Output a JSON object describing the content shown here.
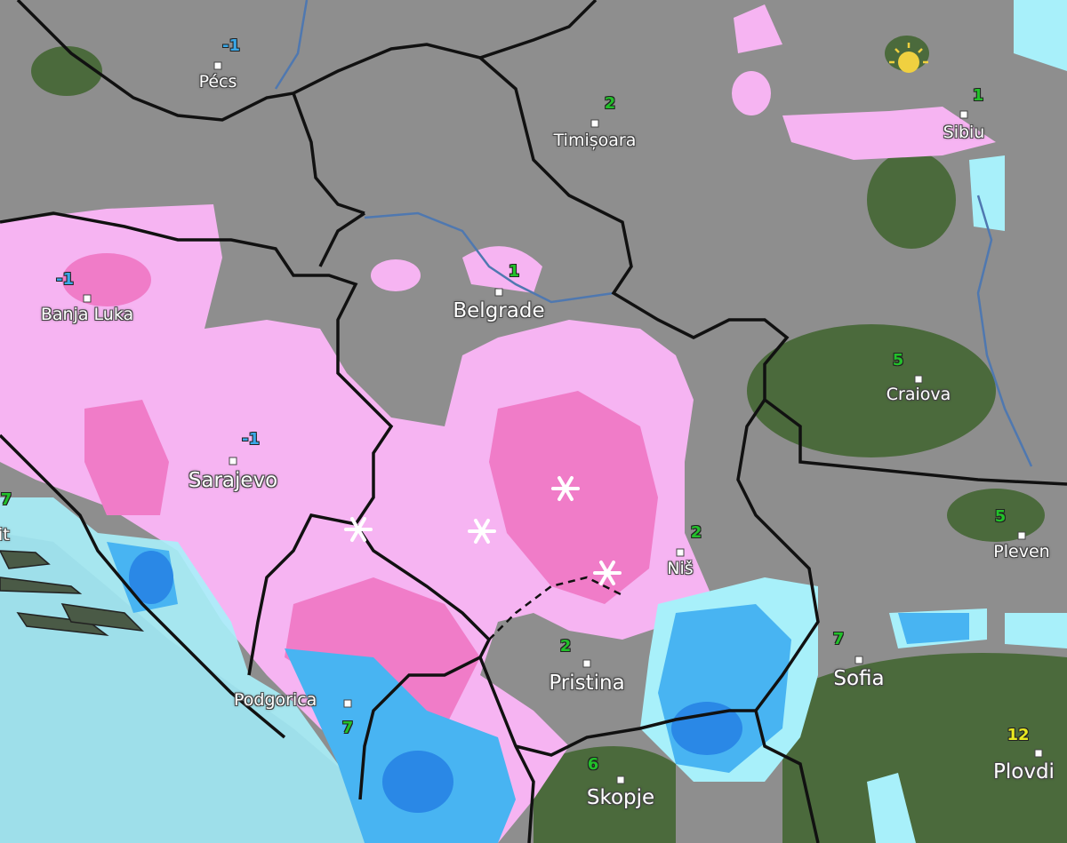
{
  "colors": {
    "background": "#8e8e8e",
    "snow_light": "#f6b4f2",
    "snow_heavy": "#f07cc8",
    "rain_light": "#a8f0fa",
    "rain_medium": "#48b4f2",
    "rain_heavy": "#2a88e6",
    "temp_cold": "#3aa8e8",
    "temp_mild": "#22c02a",
    "temp_warm": "#e8e820",
    "border": "#111111",
    "river": "#4f78b0"
  },
  "cities": [
    {
      "name": "Pécs",
      "temp": "-1"
    },
    {
      "name": "Timișoara",
      "temp": "2"
    },
    {
      "name": "Sibiu",
      "temp": "1"
    },
    {
      "name": "Banja Luka",
      "temp": "-1"
    },
    {
      "name": "Belgrade",
      "temp": "1"
    },
    {
      "name": "Craiova",
      "temp": "5"
    },
    {
      "name": "Sarajevo",
      "temp": "-1"
    },
    {
      "name": "Niš",
      "temp": "2"
    },
    {
      "name": "Pleven",
      "temp": "5"
    },
    {
      "name": "Pristina",
      "temp": "2"
    },
    {
      "name": "Sofia",
      "temp": "7"
    },
    {
      "name": "Podgorica",
      "temp": "7"
    },
    {
      "name": "Skopje",
      "temp": "6"
    },
    {
      "name": "Plovdi",
      "temp": "12"
    },
    {
      "name": "it",
      "temp": "7"
    }
  ],
  "icons": {
    "snow": "snowflake-icon",
    "sun": "sun-icon"
  }
}
